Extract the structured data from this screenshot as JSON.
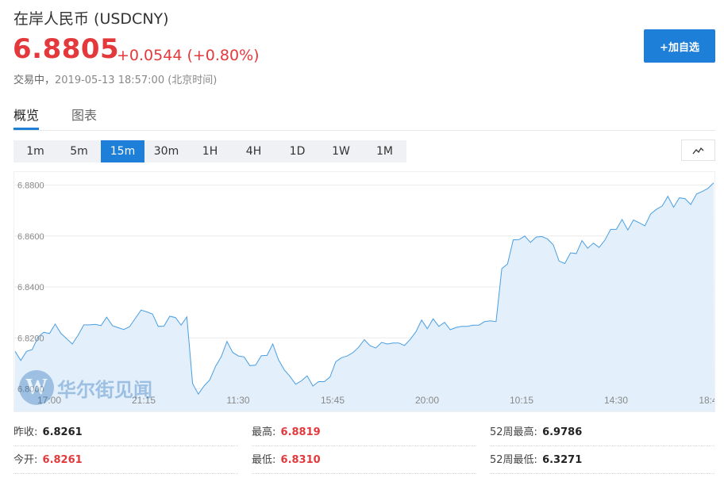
{
  "header": {
    "title": "在岸人民币 (USDCNY)",
    "price": "6.8805",
    "change": "+0.0544 (+0.80%)",
    "status_label": "交易中，",
    "timestamp": "2019-05-13 18:57:00 (北京时间)",
    "add_button": "+加自选"
  },
  "tabs": [
    {
      "label": "概览",
      "active": true
    },
    {
      "label": "图表",
      "active": false
    }
  ],
  "periods": [
    "1m",
    "5m",
    "15m",
    "30m",
    "1H",
    "4H",
    "1D",
    "1W",
    "1M"
  ],
  "active_period": "15m",
  "watermark": {
    "logo": "W",
    "text": "华尔街见闻"
  },
  "chart_data": {
    "type": "area",
    "title": "",
    "xlabel": "",
    "ylabel": "",
    "ylim": [
      6.8,
      6.8819
    ],
    "y_ticks": [
      "6.8000",
      "6.8200",
      "6.8400",
      "6.8600",
      "6.8800"
    ],
    "x_ticks": [
      "17:00",
      "21:15",
      "11:30",
      "15:45",
      "20:00",
      "10:15",
      "14:30",
      "18:4"
    ],
    "grid": true,
    "colors": {
      "line": "#4a9ee0",
      "fill": "#e3f0fc"
    },
    "series": [
      {
        "values": [
          6.8147,
          6.8111,
          6.8147,
          6.8154,
          6.8203,
          6.8222,
          6.8217,
          6.8254,
          6.8218,
          6.8197,
          6.8176,
          6.821,
          6.8251,
          6.8251,
          6.8253,
          6.8248,
          6.8281,
          6.8248,
          6.824,
          6.8233,
          6.8244,
          6.8277,
          6.8309,
          6.8302,
          6.8294,
          6.8245,
          6.8246,
          6.8285,
          6.828,
          6.825,
          6.8282,
          6.8021,
          6.7979,
          6.8011,
          6.8035,
          6.8088,
          6.8126,
          6.8186,
          6.8143,
          6.8129,
          6.8125,
          6.8091,
          6.8093,
          6.813,
          6.8131,
          6.8176,
          6.8114,
          6.8075,
          6.8049,
          6.8018,
          6.8031,
          6.8051,
          6.8011,
          6.8028,
          6.8028,
          6.8046,
          6.8106,
          6.8122,
          6.8129,
          6.8142,
          6.8163,
          6.8193,
          6.8169,
          6.816,
          6.8182,
          6.8176,
          6.818,
          6.818,
          6.817,
          6.8194,
          6.8224,
          6.827,
          6.8236,
          6.8275,
          6.8245,
          6.8261,
          6.8232,
          6.8241,
          6.8245,
          6.8245,
          6.825,
          6.825,
          6.8264,
          6.8267,
          6.8264,
          6.8472,
          6.849,
          6.8585,
          6.8586,
          6.86,
          6.8575,
          6.8596,
          6.8598,
          6.8588,
          6.8565,
          6.8502,
          6.8492,
          6.8534,
          6.8531,
          6.8582,
          6.8552,
          6.8572,
          6.8555,
          6.8584,
          6.8626,
          6.8626,
          6.8665,
          6.8624,
          6.8663,
          6.8652,
          6.864,
          6.8687,
          6.8705,
          6.8718,
          6.8756,
          6.8713,
          6.875,
          6.8747,
          6.8724,
          6.8765,
          6.8775,
          6.8787,
          6.8809
        ]
      }
    ]
  },
  "stats": [
    {
      "label": "昨收:",
      "value": "6.8261",
      "color": "#222222"
    },
    {
      "label": "最高:",
      "value": "6.8819",
      "color": "#e4393c"
    },
    {
      "label": "52周最高:",
      "value": "6.9786",
      "color": "#222222"
    },
    {
      "label": "今开:",
      "value": "6.8261",
      "color": "#e4393c"
    },
    {
      "label": "最低:",
      "value": "6.8310",
      "color": "#e4393c"
    },
    {
      "label": "52周最低:",
      "value": "6.3271",
      "color": "#222222"
    }
  ]
}
